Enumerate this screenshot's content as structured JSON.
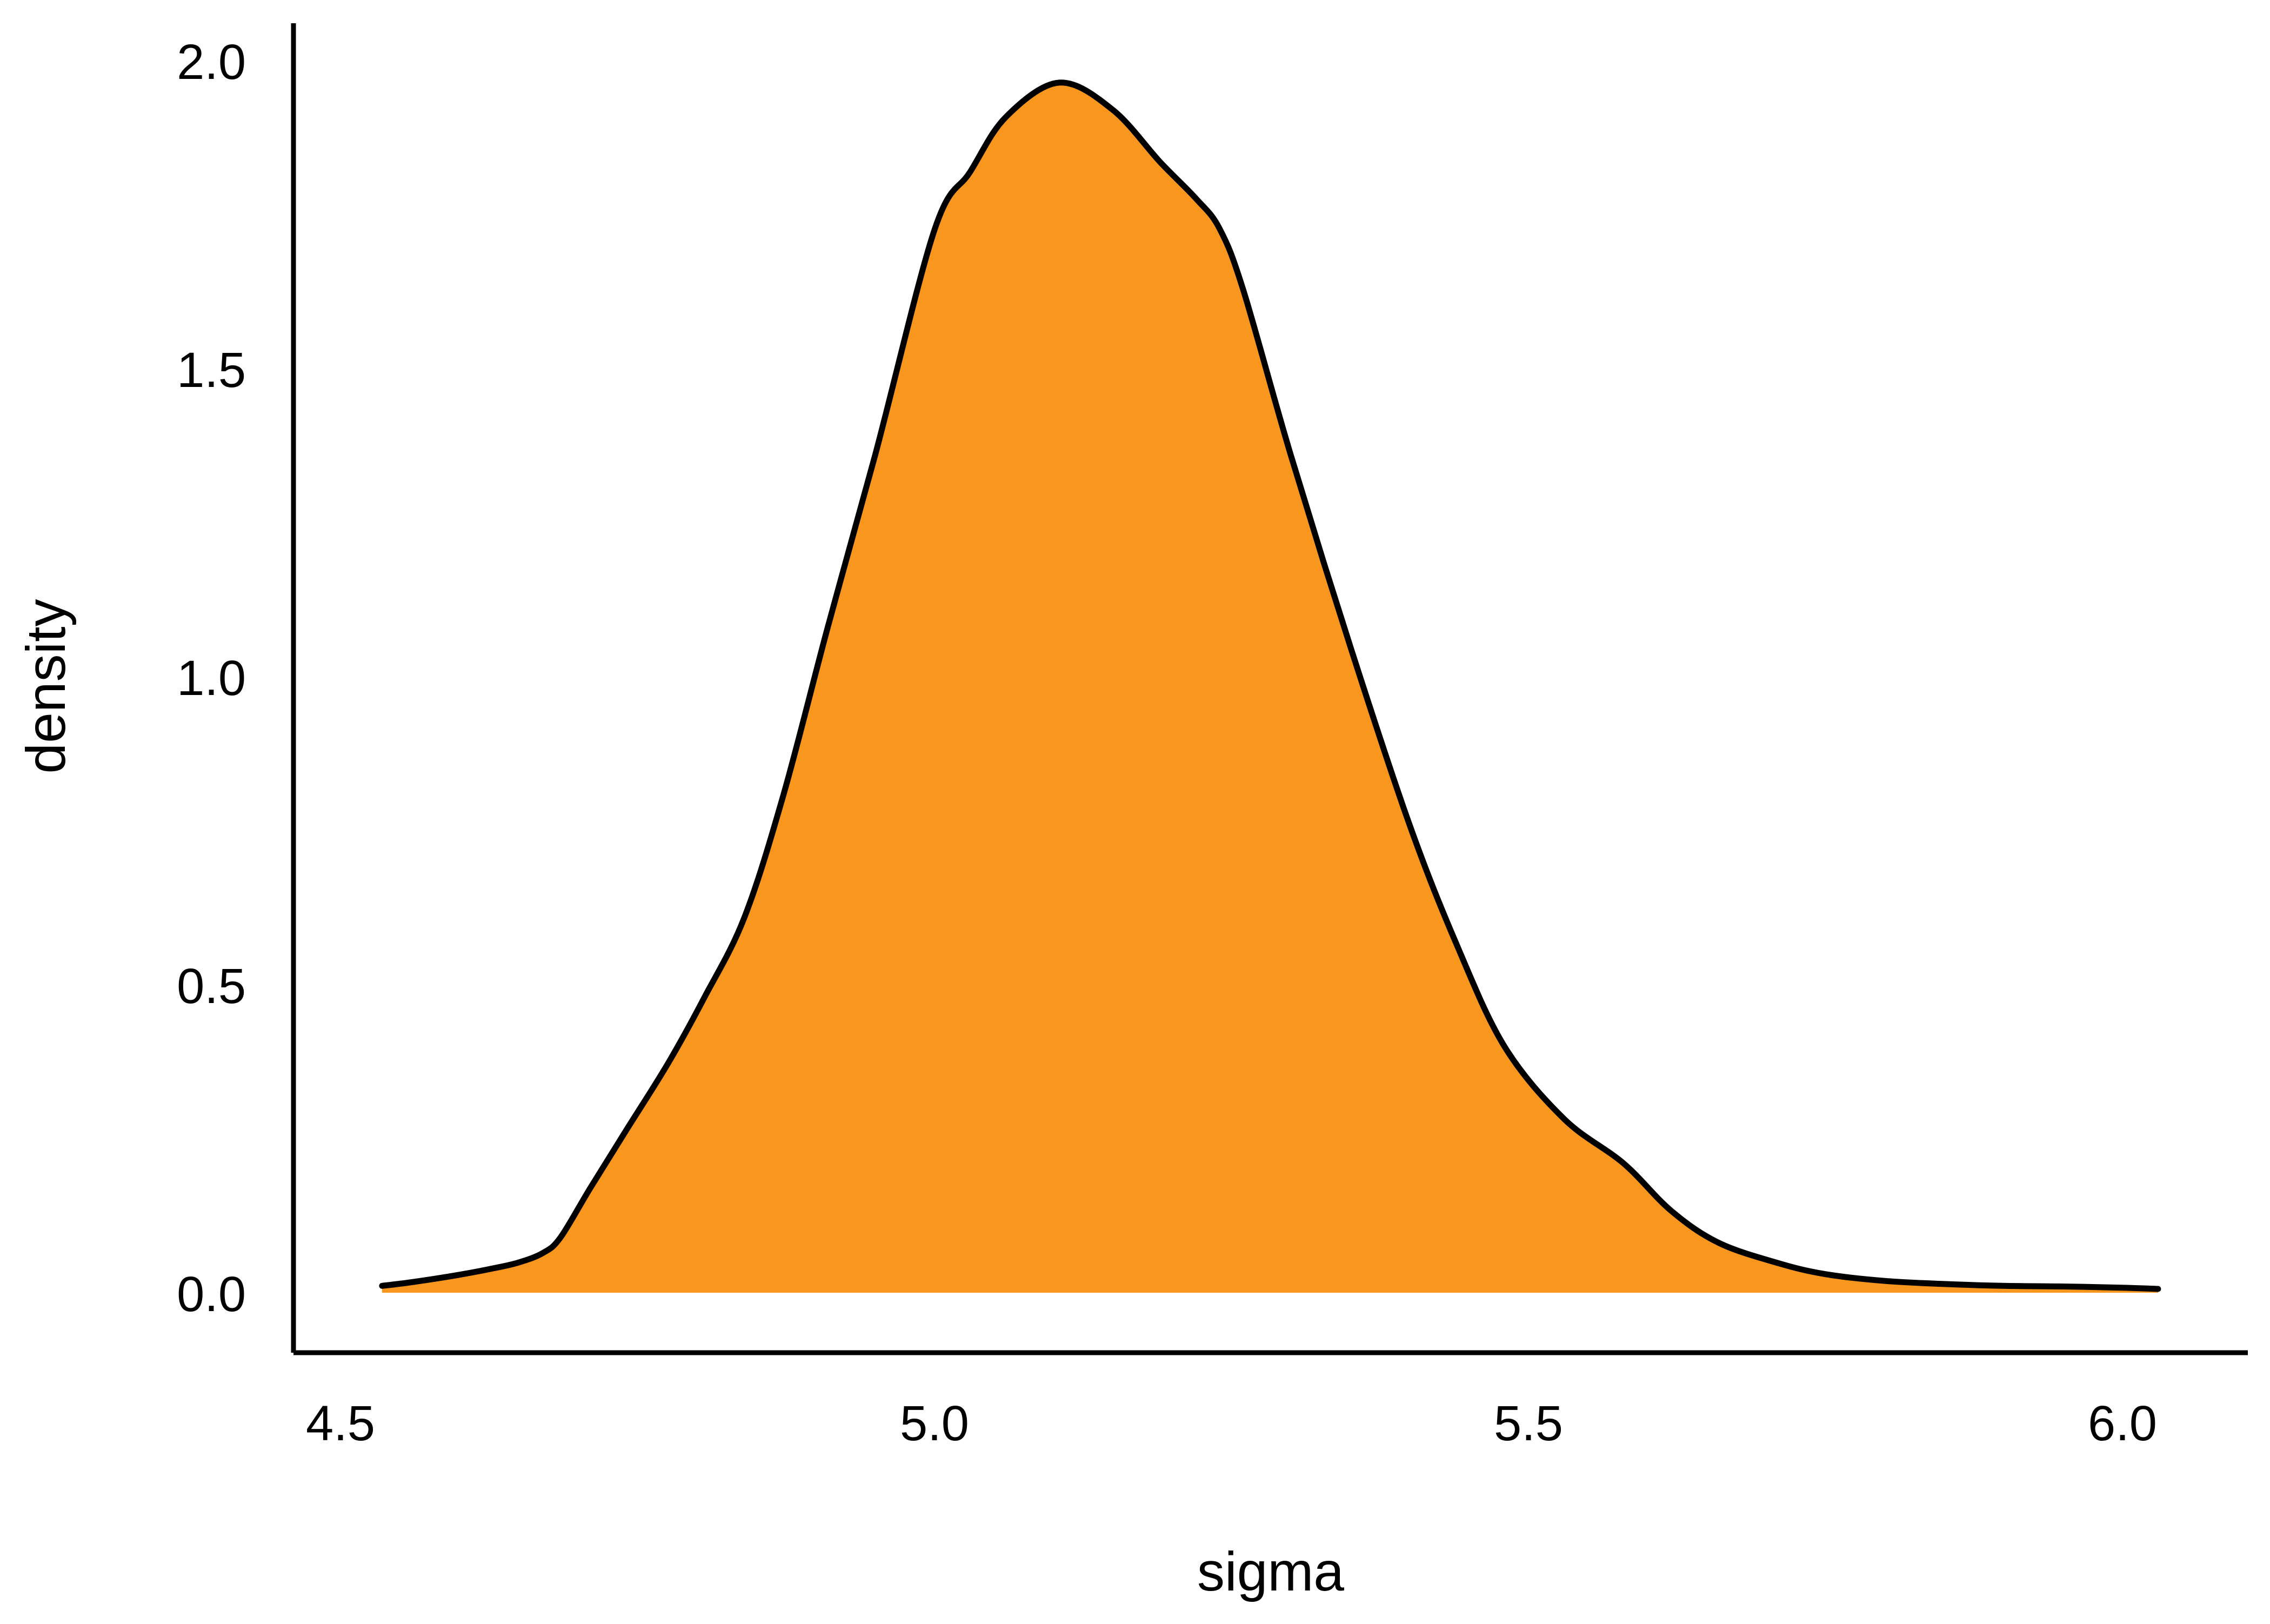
{
  "chart_data": {
    "type": "area",
    "subtype": "density-kde",
    "title": "",
    "xlabel": "sigma",
    "ylabel": "density",
    "x_ticks": [
      4.5,
      5.0,
      5.5,
      6.0
    ],
    "x_tick_labels": [
      "4.5",
      "5.0",
      "5.5",
      "6.0"
    ],
    "y_ticks": [
      0.0,
      0.5,
      1.0,
      1.5,
      2.0
    ],
    "y_tick_labels": [
      "0.0",
      "0.5",
      "1.0",
      "1.5",
      "2.0"
    ],
    "xlim": [
      4.46,
      6.11
    ],
    "ylim": [
      -0.1,
      2.06
    ],
    "grid": false,
    "legend": false,
    "peak": {
      "x": 5.1,
      "density": 1.96
    },
    "fill_color": "#F8961E",
    "line_color": "#000000",
    "axis_color": "#000000",
    "curve": [
      [
        4.535,
        0.012
      ],
      [
        4.56,
        0.018
      ],
      [
        4.6,
        0.03
      ],
      [
        4.63,
        0.041
      ],
      [
        4.65,
        0.05
      ],
      [
        4.67,
        0.065
      ],
      [
        4.685,
        0.09
      ],
      [
        4.71,
        0.17
      ],
      [
        4.74,
        0.263
      ],
      [
        4.776,
        0.374
      ],
      [
        4.806,
        0.479
      ],
      [
        4.84,
        0.61
      ],
      [
        4.873,
        0.81
      ],
      [
        4.91,
        1.08
      ],
      [
        4.95,
        1.36
      ],
      [
        5.0,
        1.726
      ],
      [
        5.03,
        1.82
      ],
      [
        5.06,
        1.909
      ],
      [
        5.105,
        1.965
      ],
      [
        5.15,
        1.921
      ],
      [
        5.19,
        1.836
      ],
      [
        5.22,
        1.777
      ],
      [
        5.24,
        1.728
      ],
      [
        5.26,
        1.628
      ],
      [
        5.3,
        1.36
      ],
      [
        5.35,
        1.05
      ],
      [
        5.4,
        0.76
      ],
      [
        5.44,
        0.564
      ],
      [
        5.48,
        0.4
      ],
      [
        5.53,
        0.283
      ],
      [
        5.58,
        0.211
      ],
      [
        5.62,
        0.134
      ],
      [
        5.66,
        0.082
      ],
      [
        5.71,
        0.049
      ],
      [
        5.75,
        0.031
      ],
      [
        5.8,
        0.02
      ],
      [
        5.85,
        0.015
      ],
      [
        5.9,
        0.012
      ],
      [
        5.95,
        0.011
      ],
      [
        6.0,
        0.009
      ],
      [
        6.03,
        0.007
      ]
    ]
  }
}
